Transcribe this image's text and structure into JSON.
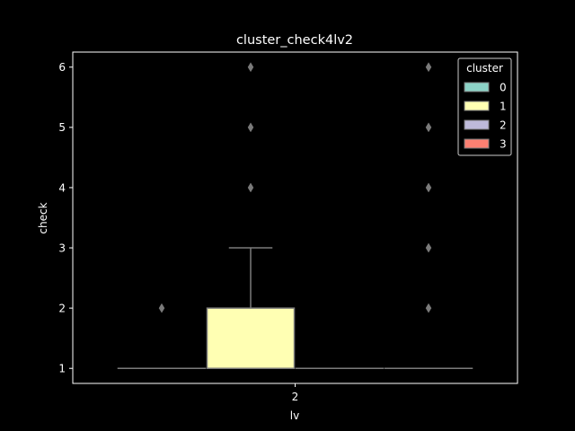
{
  "chart_data": {
    "type": "boxplot",
    "title": "cluster_check4lv2",
    "xlabel": "lv",
    "ylabel": "check",
    "categories": [
      "2"
    ],
    "ylim": [
      0.75,
      6.25
    ],
    "yticks": [
      "1",
      "2",
      "3",
      "4",
      "5",
      "6"
    ],
    "grid": false,
    "legend": {
      "title": "cluster",
      "placement": "top-right",
      "entries": [
        "0",
        "1",
        "2",
        "3"
      ]
    },
    "series": [
      {
        "name": "0",
        "color": "#8dd3c7",
        "q1": 1,
        "median": 1,
        "q3": 1,
        "whisker_low": 1,
        "whisker_high": 1,
        "outliers": [
          2
        ]
      },
      {
        "name": "1",
        "color": "#ffffb3",
        "q1": 1,
        "median": 1,
        "q3": 2,
        "whisker_low": 1,
        "whisker_high": 3,
        "outliers": [
          4,
          5,
          6
        ]
      },
      {
        "name": "2",
        "color": "#bebada",
        "q1": 1,
        "median": 1,
        "q3": 1,
        "whisker_low": 1,
        "whisker_high": 1,
        "outliers": []
      },
      {
        "name": "3",
        "color": "#fb8072",
        "q1": 1,
        "median": 1,
        "q3": 1,
        "whisker_low": 1,
        "whisker_high": 1,
        "outliers": [
          2,
          3,
          4,
          5,
          6
        ]
      }
    ]
  }
}
